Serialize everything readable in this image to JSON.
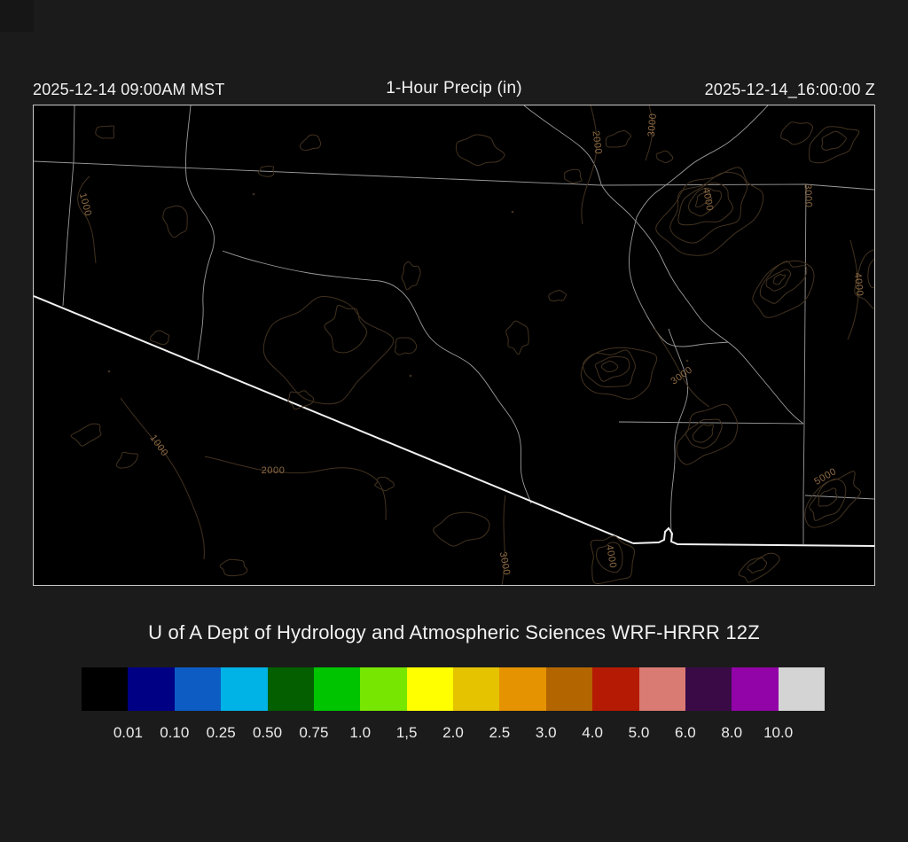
{
  "header": {
    "left_timestamp": "2025-12-14 09:00AM MST",
    "title": "1-Hour Precip (in)",
    "right_timestamp": "2025-12-14_16:00:00 Z"
  },
  "footer": {
    "credit": "U of A Dept of Hydrology and Atmospheric Sciences WRF-HRRR 12Z"
  },
  "colorbar": {
    "labels": [
      "0.01",
      "0.10",
      "0.25",
      "0.50",
      "0.75",
      "1.0",
      "1,5",
      "2.0",
      "2.5",
      "3.0",
      "4.0",
      "5.0",
      "6.0",
      "8.0",
      "10.0"
    ],
    "colors": [
      "#000000",
      "#000085",
      "#0d5cc4",
      "#00b3e6",
      "#045f00",
      "#00c400",
      "#77e600",
      "#ffff00",
      "#e5c300",
      "#e59300",
      "#b36500",
      "#b51b04",
      "#d97b72",
      "#3a0a47",
      "#9203a8",
      "#d4d4d4"
    ]
  },
  "map": {
    "background": "#000000",
    "contour_label_texts": [
      "1000",
      "1000",
      "2000",
      "2000",
      "3000",
      "4000",
      "3000",
      "4000",
      "3000",
      "5000",
      "4000",
      "3000"
    ]
  }
}
